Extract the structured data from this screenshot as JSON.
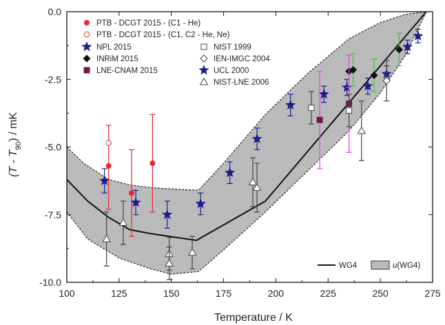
{
  "chart_data": {
    "type": "scatter",
    "xlabel": "Temperature / K",
    "ylabel": {
      "main": "(T - T",
      "sub": "90",
      "tail": ") / mK"
    },
    "xlim": [
      100,
      275
    ],
    "ylim": [
      -10,
      0
    ],
    "x_ticks": [
      100,
      125,
      150,
      175,
      200,
      225,
      250,
      275
    ],
    "y_ticks": [
      0,
      -2.5,
      -5,
      -7.5,
      -10
    ],
    "x_tick_labels": [
      "100",
      "125",
      "150",
      "175",
      "200",
      "225",
      "250",
      "275"
    ],
    "y_tick_labels": [
      "0.0",
      "-2.5",
      "-5.0",
      "-7.5",
      "-10.0"
    ],
    "grid": false,
    "band": {
      "name": "u(WG4)",
      "color": "#bdbdbd",
      "upper": [
        [
          100,
          -5.0
        ],
        [
          108,
          -5.6
        ],
        [
          120,
          -6.2
        ],
        [
          130,
          -6.4
        ],
        [
          140,
          -6.5
        ],
        [
          150,
          -6.55
        ],
        [
          163,
          -6.6
        ],
        [
          175,
          -5.6
        ],
        [
          195,
          -3.8
        ],
        [
          215,
          -2.3
        ],
        [
          235,
          -1.0
        ],
        [
          250,
          -0.4
        ],
        [
          262,
          -0.1
        ],
        [
          272,
          0.0
        ]
      ],
      "lower": [
        [
          100,
          -7.4
        ],
        [
          110,
          -8.4
        ],
        [
          125,
          -9.1
        ],
        [
          140,
          -9.5
        ],
        [
          150,
          -9.7
        ],
        [
          163,
          -9.6
        ],
        [
          175,
          -8.8
        ],
        [
          195,
          -7.4
        ],
        [
          215,
          -5.9
        ],
        [
          235,
          -4.4
        ],
        [
          250,
          -3.0
        ],
        [
          262,
          -1.6
        ],
        [
          272,
          0.0
        ]
      ]
    },
    "wg4": {
      "name": "WG4",
      "points": [
        [
          100,
          -6.2
        ],
        [
          110,
          -7.0
        ],
        [
          120,
          -7.6
        ],
        [
          130,
          -8.05
        ],
        [
          140,
          -8.2
        ],
        [
          162,
          -8.45
        ],
        [
          195,
          -7.0
        ],
        [
          272,
          0.0
        ]
      ]
    },
    "series": [
      {
        "name": "PTB - DCGT 2015 - (C1 - He)",
        "color": "#e8262d",
        "marker": "circle-filled",
        "points": [
          [
            120,
            -5.7,
            -4.2,
            -7.3
          ],
          [
            131,
            -6.7,
            -5.1,
            -8.3
          ],
          [
            141,
            -5.6,
            -3.8,
            -7.4
          ]
        ]
      },
      {
        "name": "PTB - DCGT 2015 - (C1, C2 - He, Ne)",
        "color": "#e8262d",
        "marker": "circle-open",
        "points": [
          [
            120,
            -4.85,
            -4.85,
            -4.85
          ]
        ]
      },
      {
        "name": "NPL 2015",
        "color": "#1c1c8c",
        "marker": "star",
        "points": [
          [
            118,
            -6.25,
            -5.8,
            -6.7
          ],
          [
            133,
            -7.05,
            -6.6,
            -7.5
          ],
          [
            148,
            -7.5,
            -7.0,
            -8.0
          ],
          [
            164,
            -7.1,
            -6.7,
            -7.5
          ],
          [
            178,
            -5.95,
            -5.55,
            -6.35
          ],
          [
            191,
            -4.7,
            -4.3,
            -5.1
          ],
          [
            207,
            -3.45,
            -3.05,
            -3.85
          ],
          [
            223,
            -3.05,
            -2.75,
            -3.35
          ],
          [
            234,
            -2.8,
            -2.5,
            -3.1
          ],
          [
            244,
            -2.75,
            -2.45,
            -3.05
          ],
          [
            253,
            -2.3,
            -2.0,
            -2.6
          ],
          [
            263,
            -1.3,
            -1.05,
            -1.55
          ],
          [
            268,
            -0.9,
            -0.65,
            -1.15
          ]
        ]
      },
      {
        "name": "INRiM 2015",
        "color": "#111111",
        "marker": "diamond-filled",
        "errcolor": "#33cc33",
        "points": [
          [
            235,
            -2.2,
            -1.6,
            -2.8
          ],
          [
            237,
            -2.15,
            -1.55,
            -2.75
          ],
          [
            247,
            -2.35,
            -1.75,
            -2.95
          ],
          [
            259,
            -1.4,
            -0.8,
            -2.0
          ]
        ]
      },
      {
        "name": "LNE-CNAM 2015",
        "color": "#6a1a4a",
        "marker": "square-filled",
        "errcolor": "#ff33ff",
        "points": [
          [
            221,
            -4.0,
            -2.2,
            -5.8
          ],
          [
            235,
            -3.4,
            -1.6,
            -5.2
          ]
        ]
      },
      {
        "name": "NIST 1999",
        "color": "#444444",
        "marker": "square-open",
        "points": [
          [
            217,
            -3.55,
            -2.95,
            -4.15
          ],
          [
            235,
            -3.65,
            -3.05,
            -4.25
          ]
        ]
      },
      {
        "name": "IEN-IMGC 2004",
        "color": "#444444",
        "marker": "diamond-open",
        "points": [
          [
            253,
            -2.55,
            -1.8,
            -3.3
          ]
        ]
      },
      {
        "name": "UCL 2000",
        "color": "#1c1c8c",
        "marker": "star",
        "points": []
      },
      {
        "name": "NIST-LNE 2006",
        "color": "#444444",
        "marker": "triangle-open",
        "points": [
          [
            119,
            -8.4,
            -7.4,
            -9.4
          ],
          [
            127,
            -7.8,
            -7.0,
            -8.6
          ],
          [
            149,
            -8.95,
            -8.35,
            -9.55
          ],
          [
            149,
            -9.3,
            -8.7,
            -9.9
          ],
          [
            160,
            -8.9,
            -8.3,
            -9.5
          ],
          [
            189,
            -6.3,
            -5.4,
            -7.2
          ],
          [
            191,
            -6.5,
            -5.6,
            -7.4
          ],
          [
            241,
            -4.4,
            -3.3,
            -5.5
          ]
        ]
      }
    ],
    "legend": {
      "placement": "top-left",
      "bottom_placement": "bottom-right"
    }
  }
}
